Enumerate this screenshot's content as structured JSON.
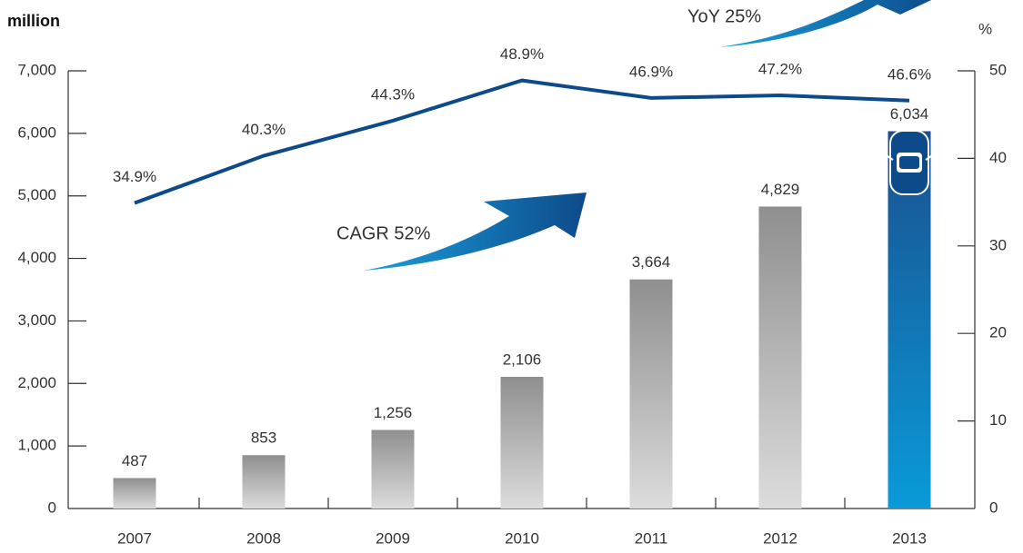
{
  "chart_data": {
    "type": "bar_line",
    "y_label": "million",
    "y2_label": "%",
    "annotations": [
      "CAGR 52%",
      "YoY 25%"
    ],
    "categories": [
      "2007",
      "2008",
      "2009",
      "2010",
      "2011",
      "2012",
      "2013"
    ],
    "series": [
      {
        "type": "bar",
        "values": [
          487,
          853,
          1256,
          2106,
          3664,
          4829,
          6034
        ],
        "value_labels": [
          "487",
          "853",
          "1,256",
          "2,106",
          "3,664",
          "4,829",
          "6,034"
        ],
        "colors": [
          "#8f8f8f",
          "#8f8f8f",
          "#8f8f8f",
          "#8f8f8f",
          "#8f8f8f",
          "#8f8f8f",
          "#1a4f8f"
        ]
      },
      {
        "type": "line",
        "axis": "y2",
        "color": "#0d4a8a",
        "values": [
          34.9,
          40.3,
          44.3,
          48.9,
          46.9,
          47.2,
          46.6
        ],
        "value_labels": [
          "34.9%",
          "40.3%",
          "44.3%",
          "48.9%",
          "46.9%",
          "47.2%",
          "46.6%"
        ]
      }
    ],
    "ylim": [
      0,
      7000
    ],
    "yticks": [
      0,
      {
        "value": 1000,
        "label": "1,000"
      },
      {
        "value": 2000,
        "label": "2,000"
      },
      {
        "value": 3000,
        "label": "3,000"
      },
      {
        "value": 4000,
        "label": "4,000"
      },
      {
        "value": 5000,
        "label": "5,000"
      },
      {
        "value": 6000,
        "label": "6,000"
      },
      {
        "value": 7000,
        "label": "7,000"
      }
    ],
    "y2lim": [
      0,
      50
    ],
    "y2ticks": [
      0,
      10,
      20,
      30,
      40,
      50
    ]
  }
}
